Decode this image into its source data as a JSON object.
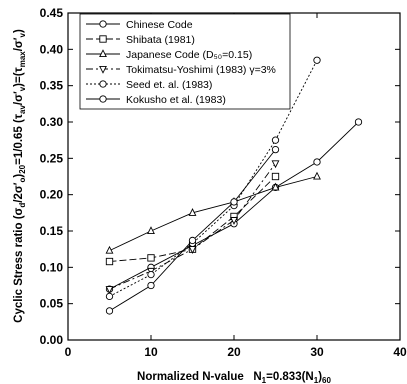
{
  "chart_data": {
    "type": "line",
    "title": "",
    "xlabel": "Normalized N-value   N₁=0.833(N₁)₆₀",
    "ylabel": "Cyclic Stress ratio (σd/2σ′o)20=1/0.65 (τav/σ′v)=(τmax/σ′v)",
    "xlim": [
      0,
      40
    ],
    "ylim": [
      0.0,
      0.45
    ],
    "xticks": [
      "0",
      "10",
      "20",
      "30",
      "40"
    ],
    "yticks": [
      "0.00",
      "0.05",
      "0.10",
      "0.15",
      "0.20",
      "0.25",
      "0.30",
      "0.35",
      "0.40",
      "0.45"
    ],
    "grid": false,
    "legend": "top-left",
    "series": [
      {
        "name": "Chinese Code",
        "marker": "circle",
        "dash": "",
        "x": [
          5,
          10,
          15,
          20,
          25,
          30,
          35
        ],
        "y": [
          0.07,
          0.1,
          0.13,
          0.16,
          0.21,
          0.245,
          0.3
        ]
      },
      {
        "name": "Shibata (1981)",
        "marker": "square",
        "dash": "7 3",
        "x": [
          5,
          10,
          15,
          20,
          25
        ],
        "y": [
          0.108,
          0.113,
          0.125,
          0.17,
          0.225
        ]
      },
      {
        "name": "Japanese Code (D₅₀=0.15)",
        "marker": "triangle-up",
        "dash": "",
        "x": [
          5,
          10,
          15,
          20,
          25,
          30
        ],
        "y": [
          0.123,
          0.15,
          0.175,
          0.19,
          0.21,
          0.225
        ]
      },
      {
        "name": "Tokimatsu-Yoshimi (1983) γ=3%",
        "marker": "triangle-down",
        "dash": "7 3 2 3",
        "x": [
          5,
          10,
          15,
          20,
          25
        ],
        "y": [
          0.07,
          0.095,
          0.125,
          0.165,
          0.243
        ]
      },
      {
        "name": "Seed et. al. (1983)",
        "marker": "circle",
        "dash": "2 2",
        "x": [
          5,
          10,
          15,
          20,
          25,
          30
        ],
        "y": [
          0.06,
          0.09,
          0.133,
          0.185,
          0.275,
          0.385
        ]
      },
      {
        "name": "Kokusho et al. (1983)",
        "marker": "circle",
        "dash": "",
        "x": [
          5,
          10,
          15,
          20,
          25
        ],
        "y": [
          0.04,
          0.075,
          0.137,
          0.19,
          0.262
        ]
      }
    ]
  }
}
